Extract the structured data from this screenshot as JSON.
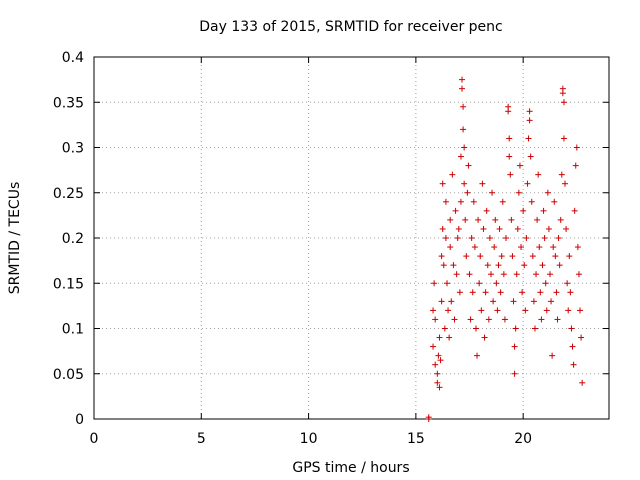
{
  "chart_data": {
    "type": "scatter",
    "title": "Day 133 of 2015, SRMTID for receiver penc",
    "xlabel": "GPS time / hours",
    "ylabel": "SRMTID / TECUs",
    "xlim": [
      0,
      24
    ],
    "ylim": [
      0,
      0.4
    ],
    "x_ticks": [
      0,
      5,
      10,
      15,
      20
    ],
    "x_tick_labels": [
      "0",
      "5",
      "10",
      "15",
      "20"
    ],
    "y_ticks": [
      0,
      0.05,
      0.1,
      0.15,
      0.2,
      0.25,
      0.3,
      0.35,
      0.4
    ],
    "y_tick_labels": [
      "0",
      "0.05",
      "0.1",
      "0.15",
      "0.2",
      "0.25",
      "0.3",
      "0.35",
      "0.4"
    ],
    "grid": true,
    "marker": "+",
    "color": "#cc0000",
    "series": [
      {
        "name": "penc",
        "points": [
          [
            15.6,
            0.0
          ],
          [
            15.6,
            0.002
          ],
          [
            15.8,
            0.12
          ],
          [
            15.8,
            0.08
          ],
          [
            15.85,
            0.15
          ],
          [
            15.9,
            0.11
          ],
          [
            15.9,
            0.06
          ],
          [
            16.0,
            0.05
          ],
          [
            16.0,
            0.04
          ],
          [
            16.05,
            0.07
          ],
          [
            16.1,
            0.09
          ],
          [
            16.1,
            0.035
          ],
          [
            16.15,
            0.065
          ],
          [
            16.2,
            0.18
          ],
          [
            16.2,
            0.13
          ],
          [
            16.25,
            0.21
          ],
          [
            16.25,
            0.26
          ],
          [
            16.3,
            0.17
          ],
          [
            16.35,
            0.1
          ],
          [
            16.4,
            0.24
          ],
          [
            16.4,
            0.2
          ],
          [
            16.45,
            0.15
          ],
          [
            16.5,
            0.12
          ],
          [
            16.55,
            0.09
          ],
          [
            16.6,
            0.19
          ],
          [
            16.6,
            0.22
          ],
          [
            16.65,
            0.13
          ],
          [
            16.7,
            0.27
          ],
          [
            16.75,
            0.17
          ],
          [
            16.8,
            0.11
          ],
          [
            16.85,
            0.23
          ],
          [
            16.9,
            0.16
          ],
          [
            16.95,
            0.2
          ],
          [
            17.0,
            0.21
          ],
          [
            17.05,
            0.14
          ],
          [
            17.1,
            0.29
          ],
          [
            17.1,
            0.24
          ],
          [
            17.15,
            0.375
          ],
          [
            17.15,
            0.365
          ],
          [
            17.2,
            0.345
          ],
          [
            17.2,
            0.32
          ],
          [
            17.25,
            0.3
          ],
          [
            17.25,
            0.26
          ],
          [
            17.3,
            0.22
          ],
          [
            17.35,
            0.18
          ],
          [
            17.4,
            0.25
          ],
          [
            17.45,
            0.28
          ],
          [
            17.5,
            0.16
          ],
          [
            17.55,
            0.11
          ],
          [
            17.6,
            0.2
          ],
          [
            17.65,
            0.14
          ],
          [
            17.7,
            0.24
          ],
          [
            17.75,
            0.19
          ],
          [
            17.8,
            0.1
          ],
          [
            17.85,
            0.07
          ],
          [
            17.9,
            0.22
          ],
          [
            17.95,
            0.15
          ],
          [
            18.0,
            0.18
          ],
          [
            18.05,
            0.12
          ],
          [
            18.1,
            0.26
          ],
          [
            18.15,
            0.21
          ],
          [
            18.2,
            0.09
          ],
          [
            18.25,
            0.14
          ],
          [
            18.3,
            0.23
          ],
          [
            18.35,
            0.17
          ],
          [
            18.4,
            0.11
          ],
          [
            18.45,
            0.2
          ],
          [
            18.5,
            0.16
          ],
          [
            18.55,
            0.25
          ],
          [
            18.6,
            0.13
          ],
          [
            18.65,
            0.19
          ],
          [
            18.7,
            0.22
          ],
          [
            18.75,
            0.15
          ],
          [
            18.8,
            0.12
          ],
          [
            18.85,
            0.17
          ],
          [
            18.9,
            0.21
          ],
          [
            18.95,
            0.14
          ],
          [
            19.0,
            0.18
          ],
          [
            19.05,
            0.24
          ],
          [
            19.1,
            0.16
          ],
          [
            19.15,
            0.11
          ],
          [
            19.2,
            0.2
          ],
          [
            19.3,
            0.345
          ],
          [
            19.3,
            0.34
          ],
          [
            19.35,
            0.31
          ],
          [
            19.35,
            0.29
          ],
          [
            19.4,
            0.27
          ],
          [
            19.45,
            0.22
          ],
          [
            19.5,
            0.18
          ],
          [
            19.55,
            0.13
          ],
          [
            19.6,
            0.08
          ],
          [
            19.6,
            0.05
          ],
          [
            19.65,
            0.1
          ],
          [
            19.7,
            0.16
          ],
          [
            19.75,
            0.21
          ],
          [
            19.8,
            0.25
          ],
          [
            19.85,
            0.28
          ],
          [
            19.9,
            0.19
          ],
          [
            19.95,
            0.14
          ],
          [
            20.0,
            0.23
          ],
          [
            20.05,
            0.17
          ],
          [
            20.1,
            0.12
          ],
          [
            20.15,
            0.2
          ],
          [
            20.2,
            0.26
          ],
          [
            20.25,
            0.31
          ],
          [
            20.3,
            0.34
          ],
          [
            20.3,
            0.33
          ],
          [
            20.35,
            0.29
          ],
          [
            20.4,
            0.24
          ],
          [
            20.45,
            0.18
          ],
          [
            20.5,
            0.13
          ],
          [
            20.55,
            0.1
          ],
          [
            20.6,
            0.16
          ],
          [
            20.65,
            0.22
          ],
          [
            20.7,
            0.27
          ],
          [
            20.75,
            0.19
          ],
          [
            20.8,
            0.14
          ],
          [
            20.85,
            0.11
          ],
          [
            20.9,
            0.17
          ],
          [
            20.95,
            0.23
          ],
          [
            21.0,
            0.2
          ],
          [
            21.05,
            0.15
          ],
          [
            21.1,
            0.12
          ],
          [
            21.15,
            0.25
          ],
          [
            21.2,
            0.21
          ],
          [
            21.25,
            0.16
          ],
          [
            21.3,
            0.13
          ],
          [
            21.35,
            0.07
          ],
          [
            21.4,
            0.19
          ],
          [
            21.45,
            0.24
          ],
          [
            21.5,
            0.18
          ],
          [
            21.55,
            0.14
          ],
          [
            21.6,
            0.11
          ],
          [
            21.65,
            0.2
          ],
          [
            21.7,
            0.17
          ],
          [
            21.75,
            0.22
          ],
          [
            21.8,
            0.27
          ],
          [
            21.85,
            0.36
          ],
          [
            21.85,
            0.365
          ],
          [
            21.9,
            0.35
          ],
          [
            21.9,
            0.31
          ],
          [
            21.95,
            0.26
          ],
          [
            22.0,
            0.21
          ],
          [
            22.05,
            0.15
          ],
          [
            22.1,
            0.12
          ],
          [
            22.15,
            0.18
          ],
          [
            22.2,
            0.14
          ],
          [
            22.25,
            0.1
          ],
          [
            22.3,
            0.08
          ],
          [
            22.35,
            0.06
          ],
          [
            22.4,
            0.23
          ],
          [
            22.45,
            0.28
          ],
          [
            22.5,
            0.3
          ],
          [
            22.55,
            0.19
          ],
          [
            22.6,
            0.16
          ],
          [
            22.65,
            0.12
          ],
          [
            22.7,
            0.09
          ],
          [
            22.75,
            0.04
          ]
        ]
      }
    ]
  }
}
